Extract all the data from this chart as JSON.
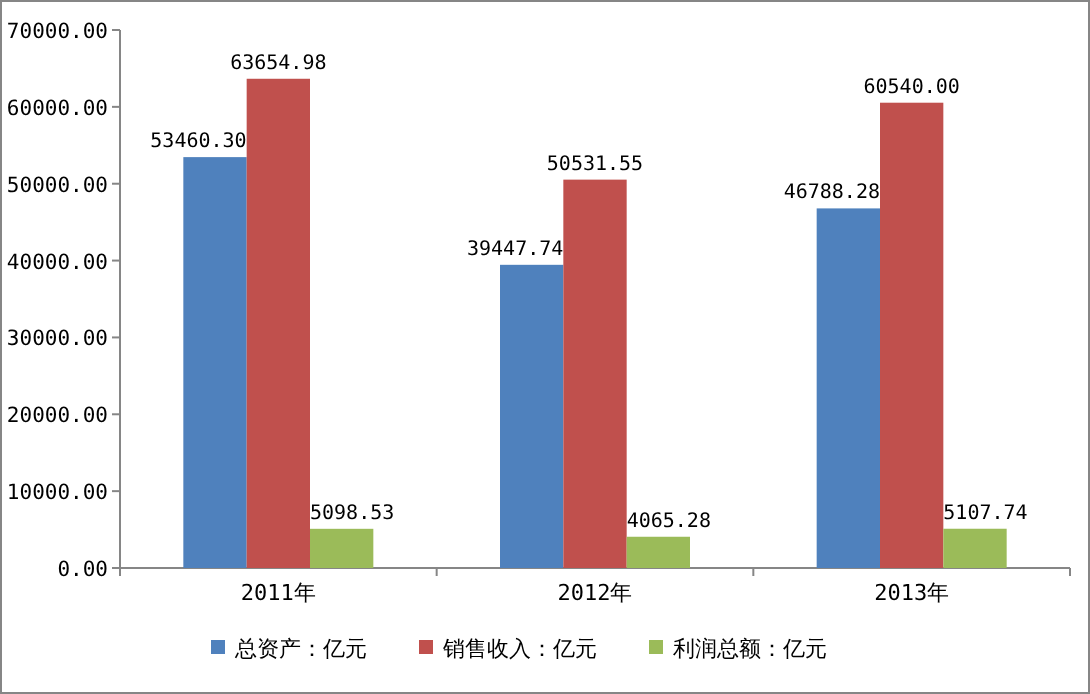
{
  "chart_data": {
    "type": "bar",
    "categories": [
      "2011年",
      "2012年",
      "2013年"
    ],
    "series": [
      {
        "name": "总资产：亿元",
        "color": "#4f81bd",
        "values": [
          53460.3,
          39447.74,
          46788.28
        ],
        "value_labels": [
          "53460.30",
          "39447.74",
          "46788.28"
        ]
      },
      {
        "name": "销售收入：亿元",
        "color": "#c0504d",
        "values": [
          63654.98,
          50531.55,
          60540.0
        ],
        "value_labels": [
          "63654.98",
          "50531.55",
          "60540.00"
        ]
      },
      {
        "name": "利润总额：亿元",
        "color": "#9bbb59",
        "values": [
          5098.53,
          4065.28,
          5107.74
        ],
        "value_labels": [
          "5098.53",
          "4065.28",
          "5107.74"
        ]
      }
    ],
    "ylim": [
      0,
      70000
    ],
    "yticks": [
      {
        "value": 0,
        "label": "0.00"
      },
      {
        "value": 10000,
        "label": "10000.00"
      },
      {
        "value": 20000,
        "label": "20000.00"
      },
      {
        "value": 30000,
        "label": "30000.00"
      },
      {
        "value": 40000,
        "label": "40000.00"
      },
      {
        "value": 50000,
        "label": "50000.00"
      },
      {
        "value": 60000,
        "label": "60000.00"
      },
      {
        "value": 70000,
        "label": "70000.00"
      }
    ],
    "legend": "bottom",
    "grid": false
  }
}
